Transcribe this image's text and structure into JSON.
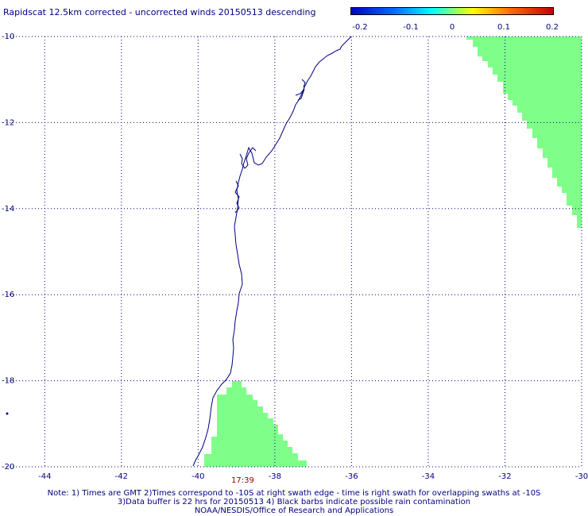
{
  "header": {
    "title": "Rapidscat 12.5km corrected - uncorrected winds 20150513 descending"
  },
  "colorbar": {
    "labels": [
      "-0.2",
      "-0.1",
      "0",
      "0.1",
      "0.2"
    ],
    "colors": [
      "#0000c8",
      "#0064ff",
      "#00ffff",
      "#ffff00",
      "#ff6400",
      "#c80000"
    ]
  },
  "map": {
    "lon_range": [
      -45,
      -30
    ],
    "lat_range": [
      -20,
      -10
    ],
    "x_tick_labels": [
      "-44",
      "-42",
      "-40",
      "-38",
      "-36",
      "-34",
      "-32",
      "-30"
    ],
    "y_tick_labels": [
      "-10",
      "-12",
      "-14",
      "-16",
      "-18",
      "-20"
    ],
    "grid": "dotted",
    "swath_color": "#7fff8a",
    "coast_color": "#000080",
    "swath_time": "17:39"
  },
  "notes": [
    "Note: 1) Times are GMT 2)Times correspond to -10S at right swath edge - time is right swath for overlapping swaths at -10S",
    "3)Data buffer is 22 hrs for 20150513 4) Black barbs indicate possible rain contamination",
    "NOAA/NESDIS/Office of Research and Applications"
  ]
}
